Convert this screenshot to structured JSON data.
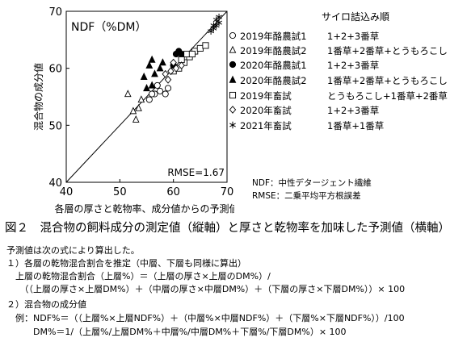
{
  "chart_data": {
    "type": "scatter",
    "title": "NDF（%DM）",
    "xlabel": "各層の厚さと乾物率、成分値からの予測値",
    "ylabel": "混合物の成分値",
    "xlim": [
      40,
      70
    ],
    "ylim": [
      40,
      70
    ],
    "xticks": [
      "40",
      "50",
      "60",
      "70"
    ],
    "yticks": [
      "40",
      "50",
      "60",
      "70"
    ],
    "grid": false,
    "reference_line": "y = x",
    "annotation": "RMSE=1.67",
    "legend_title": "サイロ詰込み順",
    "series": [
      {
        "name": "2019年酪農試1",
        "order": "1+2+3番草",
        "marker": "open-circle",
        "points": [
          [
            55.5,
            54.5
          ],
          [
            56.5,
            55.5
          ],
          [
            57.5,
            56.0
          ],
          [
            58.5,
            55.5
          ],
          [
            57.0,
            57.0
          ],
          [
            56.0,
            55.5
          ],
          [
            59.0,
            56.5
          ]
        ]
      },
      {
        "name": "2019年酪農試2",
        "order": "1番草+2番草+とうもろこし",
        "marker": "open-triangle",
        "points": [
          [
            51.5,
            55.5
          ],
          [
            52.5,
            52.5
          ],
          [
            53.0,
            51.0
          ],
          [
            53.5,
            53.0
          ],
          [
            54.0,
            54.5
          ]
        ]
      },
      {
        "name": "2020年酪農試1",
        "order": "1+2+3番草",
        "marker": "filled-circle",
        "points": [
          [
            60.5,
            62.5
          ],
          [
            61.0,
            63.0
          ],
          [
            61.5,
            62.5
          ],
          [
            60.0,
            60.5
          ]
        ]
      },
      {
        "name": "2020年酪農試2",
        "order": "1番草+2番草+とうもろこし",
        "marker": "filled-triangle",
        "points": [
          [
            54.5,
            58.5
          ],
          [
            55.5,
            60.5
          ],
          [
            56.0,
            61.5
          ],
          [
            56.5,
            59.0
          ],
          [
            57.5,
            60.0
          ],
          [
            58.0,
            61.0
          ],
          [
            56.0,
            57.0
          ],
          [
            55.0,
            56.5
          ]
        ]
      },
      {
        "name": "2019年畜試",
        "order": "とうもろこし+1番草+2番草",
        "marker": "open-square",
        "points": [
          [
            60.0,
            59.5
          ],
          [
            61.0,
            60.0
          ],
          [
            62.0,
            61.0
          ],
          [
            63.0,
            62.0
          ],
          [
            64.0,
            63.0
          ],
          [
            65.0,
            63.5
          ],
          [
            66.0,
            64.0
          ],
          [
            62.5,
            62.5
          ],
          [
            61.5,
            61.5
          ],
          [
            63.5,
            62.5
          ]
        ]
      },
      {
        "name": "2020年畜試",
        "order": "1+2+3番草",
        "marker": "open-diamond",
        "points": [
          [
            58.5,
            59.0
          ],
          [
            59.5,
            59.5
          ],
          [
            60.5,
            60.0
          ],
          [
            61.5,
            60.5
          ],
          [
            59.0,
            58.0
          ],
          [
            60.0,
            61.0
          ]
        ]
      },
      {
        "name": "2021年畜試",
        "order": "1番草+1番草",
        "marker": "asterisk",
        "points": [
          [
            67.5,
            67.0
          ],
          [
            68.0,
            67.5
          ],
          [
            68.5,
            68.0
          ],
          [
            68.0,
            68.5
          ],
          [
            67.0,
            66.5
          ],
          [
            68.5,
            69.0
          ],
          [
            67.5,
            67.5
          ]
        ]
      }
    ],
    "notes": [
      "NDF：中性デタージェント繊維",
      "RMSE：二乗平均平方根誤差"
    ]
  },
  "caption": "図２　混合物の飼料成分の測定値（縦軸）と厚さと乾物率を加味した予測値（横軸）",
  "body": [
    "予測値は次の式により算出した。",
    "１）各層の乾物混合割合を推定（中層、下層も同様に算出）",
    "　上層の乾物混合割合（上層%）＝（上層の厚さ×上層のDM%）/",
    "　　（（上層の厚さ×上層DM%）＋（中層の厚さ×中層DM%）＋（下層の厚さ×下層DM%））× 100",
    "２）混合物の成分値",
    "　例：NDF%＝（（上層%×上層NDF%）＋（中層%×中層NDF%）＋（下層%×下層NDF%））/100",
    "　　　DM%＝1/（上層%/上層DM%＋中層%/中層DM%＋下層%/下層DM%）× 100"
  ]
}
